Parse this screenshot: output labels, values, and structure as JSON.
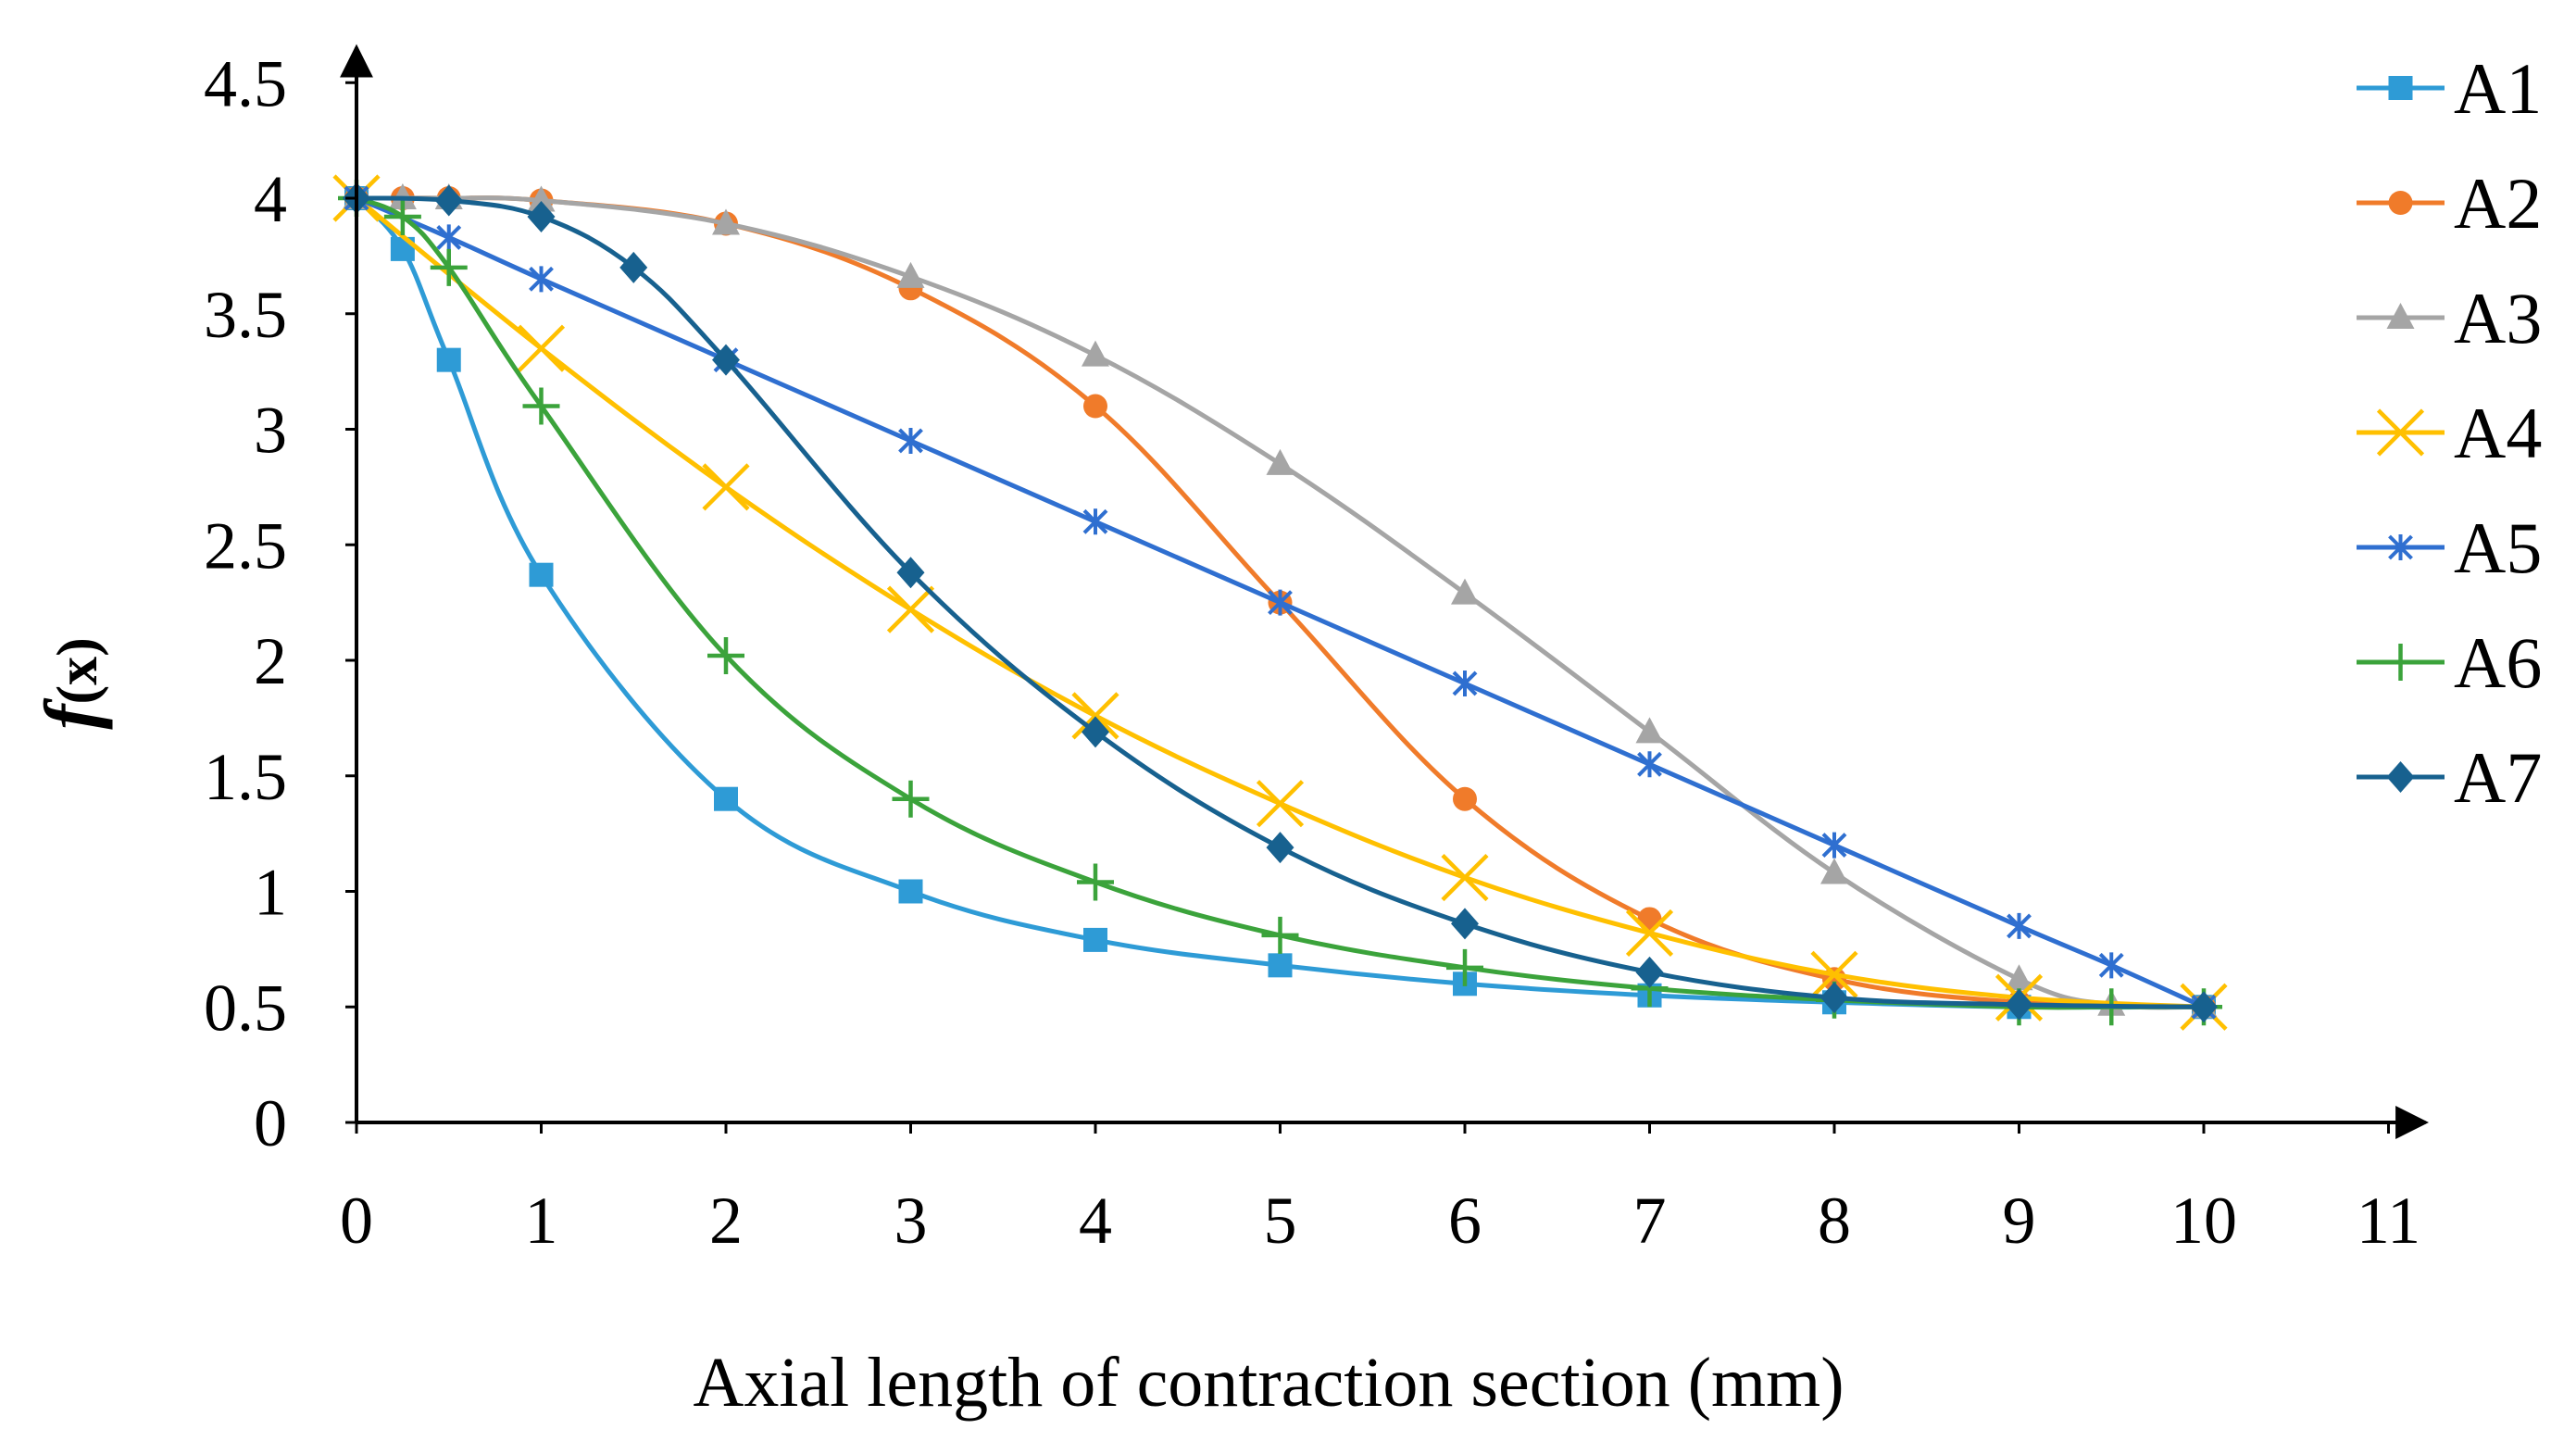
{
  "chart_data": {
    "type": "line",
    "title": "",
    "xlabel": "Axial length of contraction section (mm)",
    "ylabel": "f(x)",
    "ylabel_main": "f",
    "ylabel_sub": "(x)",
    "xlim": [
      0,
      11
    ],
    "ylim": [
      0,
      4.5
    ],
    "xticks": [
      "0",
      "1",
      "2",
      "3",
      "4",
      "5",
      "6",
      "7",
      "8",
      "9",
      "10",
      "11"
    ],
    "yticks": [
      "0",
      "0.5",
      "1",
      "1.5",
      "2",
      "2.5",
      "3",
      "3.5",
      "4",
      "4.5"
    ],
    "grid": false,
    "legend_position": "right",
    "series": [
      {
        "name": "A1",
        "color": "#2E9BD6",
        "marker": "square",
        "x": [
          0,
          0.25,
          0.5,
          1,
          2,
          3,
          4,
          5,
          6,
          7,
          8,
          9,
          10
        ],
        "y": [
          4.0,
          3.78,
          3.3,
          2.37,
          1.4,
          1.0,
          0.79,
          0.68,
          0.6,
          0.55,
          0.52,
          0.5,
          0.5
        ]
      },
      {
        "name": "A2",
        "color": "#F07B2A",
        "marker": "circle",
        "x": [
          0,
          0.25,
          0.5,
          1,
          2,
          3,
          4,
          5,
          6,
          7,
          8,
          9,
          10
        ],
        "y": [
          4.0,
          4.0,
          4.0,
          3.99,
          3.89,
          3.61,
          3.1,
          2.25,
          1.4,
          0.88,
          0.62,
          0.52,
          0.5
        ]
      },
      {
        "name": "A3",
        "color": "#A5A5A5",
        "marker": "triangle",
        "x": [
          0,
          0.25,
          0.5,
          1,
          2,
          3,
          4,
          5,
          6,
          7,
          8,
          9,
          9.5,
          10
        ],
        "y": [
          4.0,
          4.0,
          4.0,
          3.99,
          3.89,
          3.66,
          3.32,
          2.85,
          2.29,
          1.69,
          1.08,
          0.62,
          0.51,
          0.5
        ]
      },
      {
        "name": "A4",
        "color": "#FFC000",
        "marker": "x",
        "x": [
          0,
          1,
          2,
          3,
          4,
          5,
          6,
          7,
          8,
          9,
          10
        ],
        "y": [
          4.0,
          3.35,
          2.75,
          2.22,
          1.76,
          1.38,
          1.06,
          0.82,
          0.64,
          0.54,
          0.5
        ]
      },
      {
        "name": "A5",
        "color": "#2F6FD0",
        "marker": "asterisk",
        "x": [
          0,
          0.5,
          1,
          2,
          3,
          4,
          5,
          6,
          7,
          8,
          9,
          9.5,
          10
        ],
        "y": [
          4.0,
          3.83,
          3.65,
          3.3,
          2.95,
          2.6,
          2.25,
          1.9,
          1.55,
          1.2,
          0.85,
          0.68,
          0.5
        ]
      },
      {
        "name": "A6",
        "color": "#3BA33B",
        "marker": "plus",
        "x": [
          0,
          0.25,
          0.5,
          1,
          2,
          3,
          4,
          5,
          6,
          7,
          8,
          9,
          9.5,
          10
        ],
        "y": [
          4.0,
          3.92,
          3.7,
          3.1,
          2.02,
          1.4,
          1.04,
          0.81,
          0.67,
          0.58,
          0.53,
          0.5,
          0.5,
          0.5
        ]
      },
      {
        "name": "A7",
        "color": "#17618F",
        "marker": "diamond",
        "x": [
          0,
          0.5,
          1,
          1.5,
          2,
          3,
          4,
          5,
          6,
          7,
          8,
          9,
          10
        ],
        "y": [
          4.0,
          3.99,
          3.92,
          3.7,
          3.3,
          2.38,
          1.69,
          1.19,
          0.86,
          0.65,
          0.54,
          0.51,
          0.5
        ]
      }
    ]
  }
}
